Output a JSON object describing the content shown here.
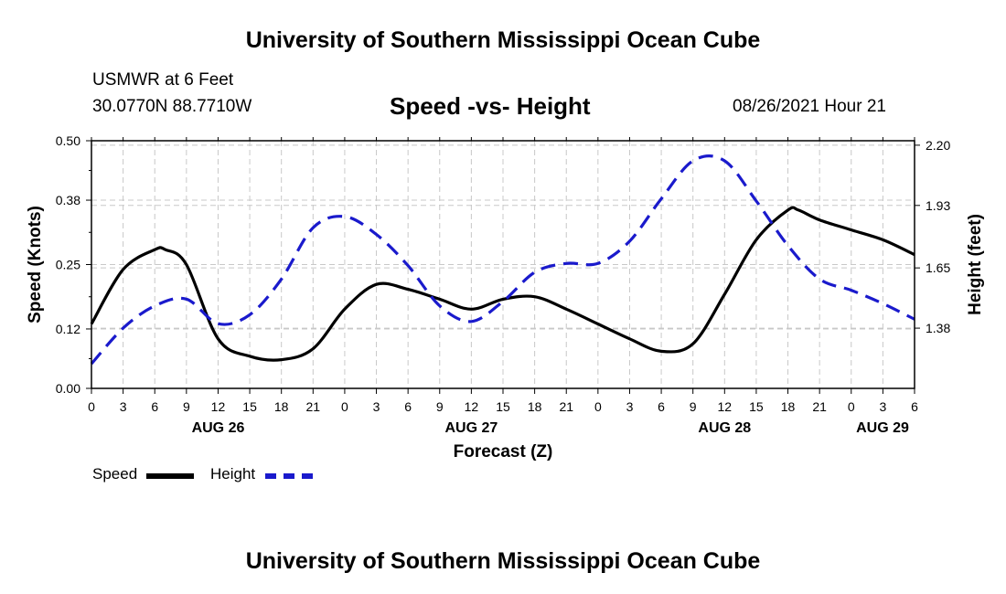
{
  "header": {
    "title": "University of Southern Mississippi Ocean Cube",
    "station": "USMWR at 6 Feet",
    "coords": "30.0770N  88.7710W",
    "subtitle": "Speed -vs- Height",
    "date": "08/26/2021 Hour 21"
  },
  "footer": {
    "title": "University of Southern Mississippi Ocean Cube"
  },
  "legend": {
    "speed_label": "Speed",
    "height_label": "Height"
  },
  "colors": {
    "speed": "#000000",
    "height": "#1a1acc",
    "grid": "#c8c8c8"
  },
  "chart_data": {
    "type": "line",
    "title": "Speed -vs- Height",
    "xlabel": "Forecast (Z)",
    "ylabel": "Speed (Knots)",
    "y2label": "Height (feet)",
    "xlim": [
      0,
      78
    ],
    "ylim": [
      0,
      0.5
    ],
    "y2lim": [
      1.11,
      2.22
    ],
    "x_ticks": [
      0,
      3,
      6,
      9,
      12,
      15,
      18,
      21,
      24,
      27,
      30,
      33,
      36,
      39,
      42,
      45,
      48,
      51,
      54,
      57,
      60,
      63,
      66,
      69,
      72,
      75,
      78
    ],
    "x_tick_labels": [
      "0",
      "3",
      "6",
      "9",
      "12",
      "15",
      "18",
      "21",
      "0",
      "3",
      "6",
      "9",
      "12",
      "15",
      "18",
      "21",
      "0",
      "3",
      "6",
      "9",
      "12",
      "15",
      "18",
      "21",
      "0",
      "3",
      "6"
    ],
    "day_labels": [
      {
        "x": 12,
        "label": "AUG 26"
      },
      {
        "x": 36,
        "label": "AUG 27"
      },
      {
        "x": 60,
        "label": "AUG 28"
      },
      {
        "x": 78,
        "label": "AUG 29"
      }
    ],
    "y_ticks": [
      0.0,
      0.12,
      0.25,
      0.38,
      0.5
    ],
    "y_tick_labels": [
      "0.00",
      "0.12",
      "0.25",
      "0.38",
      "0.50"
    ],
    "y2_ticks": [
      1.38,
      1.65,
      1.93,
      2.2
    ],
    "y2_tick_labels": [
      "1.38",
      "1.65",
      "1.93",
      "2.20"
    ],
    "series": [
      {
        "name": "Speed",
        "axis": "left",
        "style": "solid",
        "x": [
          0,
          3,
          6,
          7,
          9,
          12,
          15,
          18,
          21,
          24,
          27,
          30,
          33,
          36,
          39,
          42,
          45,
          48,
          51,
          54,
          57,
          60,
          63,
          66,
          67,
          69,
          72,
          75,
          78
        ],
        "y": [
          0.13,
          0.24,
          0.28,
          0.28,
          0.25,
          0.1,
          0.065,
          0.058,
          0.08,
          0.16,
          0.21,
          0.2,
          0.18,
          0.16,
          0.18,
          0.185,
          0.16,
          0.13,
          0.1,
          0.075,
          0.09,
          0.19,
          0.3,
          0.36,
          0.36,
          0.34,
          0.32,
          0.3,
          0.27
        ]
      },
      {
        "name": "Height",
        "axis": "right",
        "style": "dashed",
        "x": [
          0,
          3,
          6,
          9,
          12,
          15,
          18,
          21,
          24,
          27,
          30,
          33,
          36,
          39,
          42,
          45,
          48,
          51,
          54,
          57,
          60,
          63,
          66,
          69,
          72,
          75,
          78
        ],
        "y": [
          1.22,
          1.38,
          1.48,
          1.51,
          1.4,
          1.44,
          1.6,
          1.83,
          1.88,
          1.8,
          1.66,
          1.48,
          1.41,
          1.5,
          1.63,
          1.67,
          1.67,
          1.77,
          1.96,
          2.13,
          2.13,
          1.95,
          1.75,
          1.6,
          1.55,
          1.49,
          1.42
        ]
      }
    ]
  }
}
